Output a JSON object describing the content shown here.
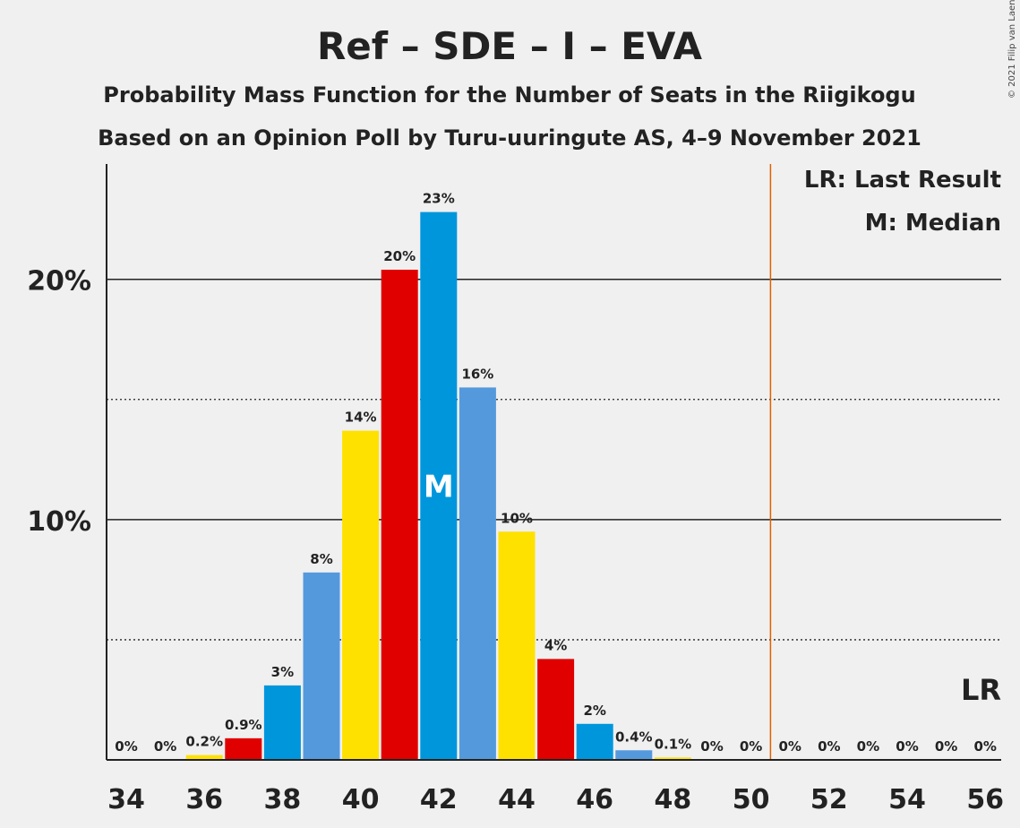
{
  "chart_data": {
    "type": "bar",
    "title": "Ref – SDE – I – EVA",
    "subtitle_1": "Probability Mass Function for the Number of Seats in the Riigikogu",
    "subtitle_2": "Based on an Opinion Poll by Turu-uuringute AS, 4–9 November 2021",
    "x": [
      34,
      35,
      36,
      37,
      38,
      39,
      40,
      41,
      42,
      43,
      44,
      45,
      46,
      47,
      48,
      49,
      50,
      51,
      52,
      53,
      54,
      55,
      56
    ],
    "values": [
      0,
      0,
      0.2,
      0.9,
      3.1,
      7.8,
      13.7,
      20.4,
      22.8,
      15.5,
      9.5,
      4.2,
      1.5,
      0.4,
      0.1,
      0,
      0,
      0,
      0,
      0,
      0,
      0,
      0
    ],
    "labels": [
      "0%",
      "0%",
      "0.2%",
      "0.9%",
      "3%",
      "8%",
      "14%",
      "20%",
      "23%",
      "16%",
      "10%",
      "4%",
      "2%",
      "0.4%",
      "0.1%",
      "0%",
      "0%",
      "0%",
      "0%",
      "0%",
      "0%",
      "0%",
      "0%"
    ],
    "bar_colors": [
      "#0096dc",
      "#5599dd",
      "#ffe100",
      "#e00000",
      "#0096dc",
      "#5599dd",
      "#ffe100",
      "#e00000",
      "#0096dc",
      "#5599dd",
      "#ffe100",
      "#e00000",
      "#0096dc",
      "#5599dd",
      "#ffe100",
      "#e00000",
      "#0096dc",
      "#5599dd",
      "#ffe100",
      "#e00000",
      "#0096dc",
      "#5599dd",
      "#ffe100"
    ],
    "x_tick_labels": [
      "34",
      "36",
      "38",
      "40",
      "42",
      "44",
      "46",
      "48",
      "50",
      "52",
      "54",
      "56"
    ],
    "y_tick_labels": [
      "10%",
      "20%"
    ],
    "ylim": [
      0,
      24.8
    ],
    "major_gridlines": [
      10,
      20
    ],
    "minor_gridlines": [
      5,
      15
    ],
    "median_seat": 42,
    "median_mark": "M",
    "last_result_seat": 50.5,
    "last_result_mark": "LR",
    "last_result_color": "#e06000",
    "legend": [
      "LR: Last Result",
      "M: Median"
    ],
    "legend_position": "top-right"
  },
  "copyright": "© 2021 Filip van Laenen"
}
